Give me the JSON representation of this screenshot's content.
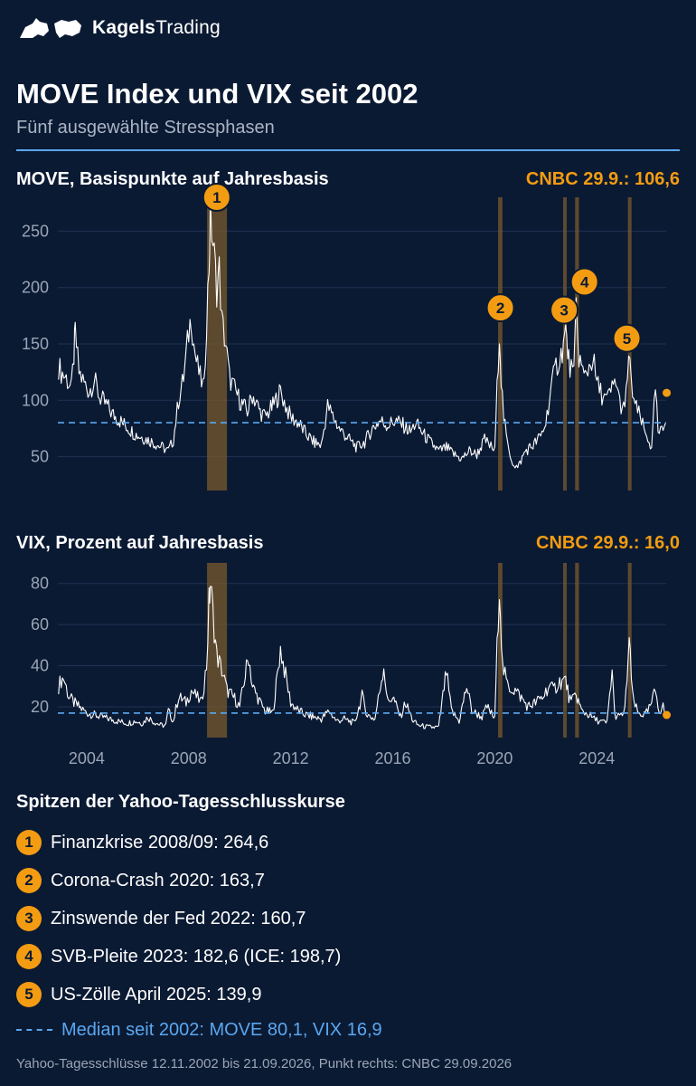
{
  "brand": {
    "name_bold": "Kagels",
    "name_rest": "Trading",
    "logo_icon": "bull-bear-icon"
  },
  "header": {
    "title": "MOVE Index und VIX seit 2002",
    "subtitle": "Fünf ausgewählte Stressphasen"
  },
  "colors": {
    "background": "#0b1a33",
    "line": "#ffffff",
    "accent": "#f39c12",
    "median": "#5aa7f0",
    "band": "#7a5a2e"
  },
  "chart_data": [
    {
      "type": "line",
      "title": "MOVE, Basispunkte auf Jahresbasis",
      "annotation": "CNBC 29.9.: 106,6",
      "xlim": [
        2002.87,
        2026.72
      ],
      "ylim": [
        20,
        280
      ],
      "yticks": [
        50,
        100,
        150,
        200,
        250
      ],
      "median": 80.1,
      "cnbc_point": {
        "x": 2026.74,
        "y": 106.6
      },
      "series": [
        {
          "values": [
            [
              2002.9,
              130
            ],
            [
              2003.0,
              125
            ],
            [
              2003.2,
              120
            ],
            [
              2003.4,
              110
            ],
            [
              2003.5,
              140
            ],
            [
              2003.55,
              160
            ],
            [
              2003.7,
              125
            ],
            [
              2003.9,
              115
            ],
            [
              2004.1,
              108
            ],
            [
              2004.3,
              118
            ],
            [
              2004.5,
              103
            ],
            [
              2004.8,
              95
            ],
            [
              2005.0,
              88
            ],
            [
              2005.3,
              82
            ],
            [
              2005.6,
              76
            ],
            [
              2005.9,
              70
            ],
            [
              2006.2,
              67
            ],
            [
              2006.5,
              64
            ],
            [
              2006.8,
              60
            ],
            [
              2007.0,
              58
            ],
            [
              2007.2,
              55
            ],
            [
              2007.4,
              65
            ],
            [
              2007.6,
              100
            ],
            [
              2007.8,
              120
            ],
            [
              2008.0,
              160
            ],
            [
              2008.1,
              175
            ],
            [
              2008.2,
              150
            ],
            [
              2008.3,
              135
            ],
            [
              2008.45,
              120
            ],
            [
              2008.6,
              110
            ],
            [
              2008.7,
              170
            ],
            [
              2008.8,
              220
            ],
            [
              2008.85,
              264.6
            ],
            [
              2008.95,
              240
            ],
            [
              2009.1,
              200
            ],
            [
              2009.2,
              215
            ],
            [
              2009.3,
              170
            ],
            [
              2009.45,
              150
            ],
            [
              2009.6,
              120
            ],
            [
              2009.8,
              110
            ],
            [
              2010.0,
              100
            ],
            [
              2010.3,
              90
            ],
            [
              2010.5,
              105
            ],
            [
              2010.8,
              90
            ],
            [
              2011.0,
              85
            ],
            [
              2011.3,
              95
            ],
            [
              2011.6,
              108
            ],
            [
              2011.8,
              95
            ],
            [
              2012.0,
              85
            ],
            [
              2012.3,
              80
            ],
            [
              2012.6,
              70
            ],
            [
              2012.9,
              63
            ],
            [
              2013.2,
              60
            ],
            [
              2013.45,
              95
            ],
            [
              2013.6,
              88
            ],
            [
              2013.9,
              75
            ],
            [
              2014.3,
              65
            ],
            [
              2014.6,
              58
            ],
            [
              2014.9,
              63
            ],
            [
              2015.2,
              75
            ],
            [
              2015.5,
              82
            ],
            [
              2015.8,
              78
            ],
            [
              2016.1,
              82
            ],
            [
              2016.4,
              78
            ],
            [
              2016.7,
              72
            ],
            [
              2016.9,
              80
            ],
            [
              2017.2,
              70
            ],
            [
              2017.5,
              62
            ],
            [
              2017.8,
              55
            ],
            [
              2018.1,
              58
            ],
            [
              2018.4,
              52
            ],
            [
              2018.7,
              48
            ],
            [
              2019.0,
              55
            ],
            [
              2019.3,
              52
            ],
            [
              2019.6,
              65
            ],
            [
              2019.8,
              60
            ],
            [
              2020.0,
              55
            ],
            [
              2020.18,
              163.7
            ],
            [
              2020.25,
              120
            ],
            [
              2020.35,
              85
            ],
            [
              2020.5,
              60
            ],
            [
              2020.7,
              45
            ],
            [
              2020.9,
              40
            ],
            [
              2021.2,
              55
            ],
            [
              2021.5,
              60
            ],
            [
              2021.8,
              68
            ],
            [
              2022.0,
              80
            ],
            [
              2022.2,
              110
            ],
            [
              2022.4,
              130
            ],
            [
              2022.6,
              140
            ],
            [
              2022.78,
              160.7
            ],
            [
              2022.9,
              135
            ],
            [
              2023.0,
              128
            ],
            [
              2023.1,
              120
            ],
            [
              2023.19,
              182.6
            ],
            [
              2023.3,
              140
            ],
            [
              2023.5,
              120
            ],
            [
              2023.7,
              130
            ],
            [
              2023.85,
              138
            ],
            [
              2024.0,
              115
            ],
            [
              2024.2,
              105
            ],
            [
              2024.4,
              100
            ],
            [
              2024.6,
              110
            ],
            [
              2024.75,
              118
            ],
            [
              2024.9,
              98
            ],
            [
              2025.1,
              90
            ],
            [
              2025.25,
              139.9
            ],
            [
              2025.35,
              115
            ],
            [
              2025.5,
              95
            ],
            [
              2025.7,
              85
            ],
            [
              2025.9,
              70
            ],
            [
              2026.05,
              65
            ],
            [
              2026.15,
              55
            ],
            [
              2026.3,
              112
            ],
            [
              2026.4,
              70
            ],
            [
              2026.55,
              72
            ],
            [
              2026.7,
              80
            ]
          ]
        }
      ],
      "bands": [
        [
          2008.72,
          2009.5
        ],
        [
          2020.13,
          2020.3
        ],
        [
          2022.68,
          2022.82
        ],
        [
          2023.15,
          2023.3
        ],
        [
          2025.22,
          2025.32
        ]
      ],
      "markers": [
        {
          "num": "1",
          "x": 2009.1,
          "y": 280
        },
        {
          "num": "2",
          "x": 2020.22,
          "y": 182
        },
        {
          "num": "3",
          "x": 2022.72,
          "y": 180
        },
        {
          "num": "4",
          "x": 2023.52,
          "y": 205
        },
        {
          "num": "5",
          "x": 2025.18,
          "y": 155
        }
      ]
    },
    {
      "type": "line",
      "title": "VIX, Prozent auf Jahresbasis",
      "annotation": "CNBC 29.9.: 16,0",
      "xlim": [
        2002.87,
        2026.72
      ],
      "ylim": [
        5,
        90
      ],
      "yticks": [
        20,
        40,
        60,
        80
      ],
      "xticks": [
        2004,
        2008,
        2012,
        2016,
        2020,
        2024
      ],
      "median": 16.9,
      "cnbc_point": {
        "x": 2026.74,
        "y": 16.0
      },
      "series": [
        {
          "values": [
            [
              2002.9,
              30
            ],
            [
              2003.0,
              33
            ],
            [
              2003.1,
              34
            ],
            [
              2003.3,
              25
            ],
            [
              2003.5,
              22
            ],
            [
              2003.8,
              19
            ],
            [
              2004.0,
              17
            ],
            [
              2004.3,
              16
            ],
            [
              2004.6,
              15
            ],
            [
              2004.9,
              14
            ],
            [
              2005.2,
              13
            ],
            [
              2005.6,
              12
            ],
            [
              2005.9,
              13
            ],
            [
              2006.2,
              12
            ],
            [
              2006.4,
              15
            ],
            [
              2006.6,
              13
            ],
            [
              2006.9,
              11
            ],
            [
              2007.1,
              11
            ],
            [
              2007.2,
              18
            ],
            [
              2007.4,
              13
            ],
            [
              2007.6,
              25
            ],
            [
              2007.9,
              22
            ],
            [
              2008.1,
              28
            ],
            [
              2008.3,
              25
            ],
            [
              2008.5,
              22
            ],
            [
              2008.7,
              40
            ],
            [
              2008.8,
              70
            ],
            [
              2008.85,
              80
            ],
            [
              2008.95,
              65
            ],
            [
              2009.1,
              45
            ],
            [
              2009.3,
              38
            ],
            [
              2009.5,
              28
            ],
            [
              2009.8,
              24
            ],
            [
              2010.0,
              20
            ],
            [
              2010.35,
              45
            ],
            [
              2010.5,
              30
            ],
            [
              2010.8,
              22
            ],
            [
              2011.0,
              18
            ],
            [
              2011.3,
              17
            ],
            [
              2011.6,
              48
            ],
            [
              2011.8,
              35
            ],
            [
              2012.0,
              22
            ],
            [
              2012.3,
              18
            ],
            [
              2012.6,
              16
            ],
            [
              2012.9,
              15
            ],
            [
              2013.2,
              14
            ],
            [
              2013.5,
              18
            ],
            [
              2013.8,
              13
            ],
            [
              2014.1,
              14
            ],
            [
              2014.5,
              12
            ],
            [
              2014.8,
              25
            ],
            [
              2015.0,
              16
            ],
            [
              2015.3,
              14
            ],
            [
              2015.65,
              40
            ],
            [
              2015.8,
              22
            ],
            [
              2016.0,
              25
            ],
            [
              2016.3,
              15
            ],
            [
              2016.5,
              22
            ],
            [
              2016.8,
              13
            ],
            [
              2017.0,
              11
            ],
            [
              2017.4,
              10
            ],
            [
              2017.8,
              10
            ],
            [
              2018.1,
              37
            ],
            [
              2018.3,
              18
            ],
            [
              2018.6,
              13
            ],
            [
              2018.9,
              30
            ],
            [
              2019.1,
              18
            ],
            [
              2019.5,
              15
            ],
            [
              2019.7,
              20
            ],
            [
              2020.0,
              14
            ],
            [
              2020.18,
              82
            ],
            [
              2020.3,
              40
            ],
            [
              2020.5,
              30
            ],
            [
              2020.8,
              28
            ],
            [
              2021.0,
              25
            ],
            [
              2021.3,
              20
            ],
            [
              2021.6,
              22
            ],
            [
              2021.9,
              25
            ],
            [
              2022.1,
              30
            ],
            [
              2022.3,
              28
            ],
            [
              2022.5,
              32
            ],
            [
              2022.78,
              33
            ],
            [
              2022.9,
              25
            ],
            [
              2023.0,
              22
            ],
            [
              2023.19,
              26
            ],
            [
              2023.4,
              18
            ],
            [
              2023.7,
              16
            ],
            [
              2023.9,
              14
            ],
            [
              2024.1,
              13
            ],
            [
              2024.4,
              12
            ],
            [
              2024.6,
              38
            ],
            [
              2024.7,
              16
            ],
            [
              2024.9,
              15
            ],
            [
              2025.1,
              18
            ],
            [
              2025.27,
              52
            ],
            [
              2025.4,
              25
            ],
            [
              2025.6,
              17
            ],
            [
              2025.9,
              16
            ],
            [
              2026.1,
              20
            ],
            [
              2026.3,
              28
            ],
            [
              2026.45,
              18
            ],
            [
              2026.6,
              20
            ],
            [
              2026.7,
              16
            ]
          ]
        }
      ],
      "bands": [
        [
          2008.72,
          2009.5
        ],
        [
          2020.13,
          2020.3
        ],
        [
          2022.68,
          2022.82
        ],
        [
          2023.15,
          2023.3
        ],
        [
          2025.22,
          2025.32
        ]
      ]
    }
  ],
  "legend": {
    "title": "Spitzen der Yahoo-Tagesschlusskurse",
    "items": [
      {
        "num": "1",
        "text": "Finanzkrise 2008/09: 264,6"
      },
      {
        "num": "2",
        "text": "Corona-Crash 2020: 163,7"
      },
      {
        "num": "3",
        "text": "Zinswende der Fed 2022: 160,7"
      },
      {
        "num": "4",
        "text": "SVB-Pleite 2023: 182,6 (ICE: 198,7)"
      },
      {
        "num": "5",
        "text": "US-Zölle April 2025: 139,9"
      }
    ],
    "median_text": "Median seit 2002: MOVE 80,1, VIX 16,9"
  },
  "footer": "Yahoo-Tagesschlüsse 12.11.2002 bis 21.09.2026, Punkt rechts: CNBC 29.09.2026"
}
